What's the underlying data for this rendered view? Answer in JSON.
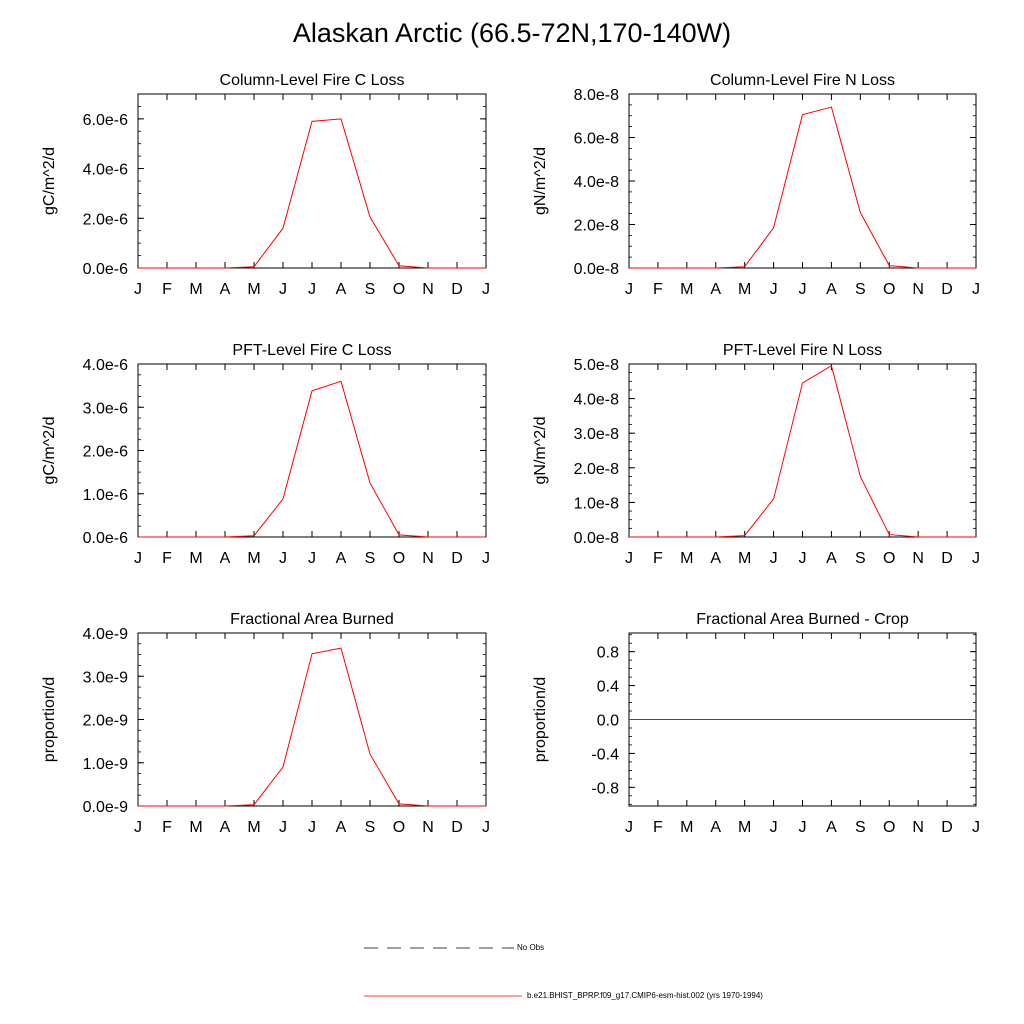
{
  "title": "Alaskan Arctic (66.5-72N,170-140W)",
  "colors": {
    "series": "#ff0000",
    "obs": "#000000"
  },
  "legend": {
    "obs_label": "No Obs",
    "model_label": "b.e21.BHIST_BPRP.f09_g17.CMIP6-esm-hist.002 (yrs 1970-1994)"
  },
  "chart_data": [
    {
      "type": "line",
      "title": "Column-Level Fire C Loss",
      "ylabel": "gC/m^2/d",
      "xlabel": "",
      "x_ticks": [
        "J",
        "F",
        "M",
        "A",
        "M",
        "J",
        "J",
        "A",
        "S",
        "O",
        "N",
        "D",
        "J"
      ],
      "ylim": [
        0,
        7e-06
      ],
      "y_ticks": [
        0,
        2e-06,
        4e-06,
        6e-06
      ],
      "y_tick_labels": [
        "0.0e-6",
        "2.0e-6",
        "4.0e-6",
        "6.0e-6"
      ],
      "y_minor_step": 5e-07,
      "series": [
        {
          "values": [
            0,
            0,
            0,
            0,
            5e-08,
            1.6e-06,
            5.9e-06,
            6e-06,
            2.05e-06,
            9e-08,
            0,
            0,
            0
          ]
        }
      ]
    },
    {
      "type": "line",
      "title": "Column-Level Fire N Loss",
      "ylabel": "gN/m^2/d",
      "xlabel": "",
      "x_ticks": [
        "J",
        "F",
        "M",
        "A",
        "M",
        "J",
        "J",
        "A",
        "S",
        "O",
        "N",
        "D",
        "J"
      ],
      "ylim": [
        0,
        8e-08
      ],
      "y_ticks": [
        0,
        2e-08,
        4e-08,
        6e-08,
        8e-08
      ],
      "y_tick_labels": [
        "0.0e-8",
        "2.0e-8",
        "4.0e-8",
        "6.0e-8",
        "8.0e-8"
      ],
      "y_minor_step": 5e-09,
      "series": [
        {
          "values": [
            0,
            0,
            0,
            0,
            6e-10,
            1.85e-08,
            7.05e-08,
            7.4e-08,
            2.55e-08,
            1.1e-09,
            0,
            0,
            0
          ]
        }
      ]
    },
    {
      "type": "line",
      "title": "PFT-Level Fire C Loss",
      "ylabel": "gC/m^2/d",
      "xlabel": "",
      "x_ticks": [
        "J",
        "F",
        "M",
        "A",
        "M",
        "J",
        "J",
        "A",
        "S",
        "O",
        "N",
        "D",
        "J"
      ],
      "ylim": [
        0,
        4e-06
      ],
      "y_ticks": [
        0,
        1e-06,
        2e-06,
        3e-06,
        4e-06
      ],
      "y_tick_labels": [
        "0.0e-6",
        "1.0e-6",
        "2.0e-6",
        "3.0e-6",
        "4.0e-6"
      ],
      "y_minor_step": 2.5e-07,
      "series": [
        {
          "values": [
            0,
            0,
            0,
            0,
            3e-08,
            8.8e-07,
            3.38e-06,
            3.6e-06,
            1.25e-06,
            5e-08,
            0,
            0,
            0
          ]
        }
      ]
    },
    {
      "type": "line",
      "title": "PFT-Level Fire N Loss",
      "ylabel": "gN/m^2/d",
      "xlabel": "",
      "x_ticks": [
        "J",
        "F",
        "M",
        "A",
        "M",
        "J",
        "J",
        "A",
        "S",
        "O",
        "N",
        "D",
        "J"
      ],
      "ylim": [
        0,
        5e-08
      ],
      "y_ticks": [
        0,
        1e-08,
        2e-08,
        3e-08,
        4e-08,
        5e-08
      ],
      "y_tick_labels": [
        "0.0e-8",
        "1.0e-8",
        "2.0e-8",
        "3.0e-8",
        "4.0e-8",
        "5.0e-8"
      ],
      "y_minor_step": 2.5e-09,
      "series": [
        {
          "values": [
            0,
            0,
            0,
            0,
            4e-10,
            1.1e-08,
            4.45e-08,
            4.95e-08,
            1.75e-08,
            7e-10,
            0,
            0,
            0
          ]
        }
      ]
    },
    {
      "type": "line",
      "title": "Fractional Area Burned",
      "ylabel": "proportion/d",
      "xlabel": "",
      "x_ticks": [
        "J",
        "F",
        "M",
        "A",
        "M",
        "J",
        "J",
        "A",
        "S",
        "O",
        "N",
        "D",
        "J"
      ],
      "ylim": [
        0,
        4e-09
      ],
      "y_ticks": [
        0,
        1e-09,
        2e-09,
        3e-09,
        4e-09
      ],
      "y_tick_labels": [
        "0.0e-9",
        "1.0e-9",
        "2.0e-9",
        "3.0e-9",
        "4.0e-9"
      ],
      "y_minor_step": 2.5e-10,
      "series": [
        {
          "values": [
            0,
            0,
            0,
            0,
            3e-11,
            9e-10,
            3.52e-09,
            3.65e-09,
            1.2e-09,
            5e-11,
            0,
            0,
            0
          ]
        }
      ]
    },
    {
      "type": "line",
      "title": "Fractional Area Burned - Crop",
      "ylabel": "proportion/d",
      "xlabel": "",
      "x_ticks": [
        "J",
        "F",
        "M",
        "A",
        "M",
        "J",
        "J",
        "A",
        "S",
        "O",
        "N",
        "D",
        "J"
      ],
      "ylim": [
        -1.02,
        1.02
      ],
      "y_ticks": [
        -0.8,
        -0.4,
        0.0,
        0.4,
        0.8
      ],
      "y_tick_labels": [
        "-0.8",
        "-0.4",
        "0.0",
        "0.4",
        "0.8"
      ],
      "y_minor_step": 0.1,
      "series": [
        {
          "values": [
            0,
            0,
            0,
            0,
            0,
            0,
            0,
            0,
            0,
            0,
            0,
            0,
            0
          ]
        }
      ]
    }
  ]
}
